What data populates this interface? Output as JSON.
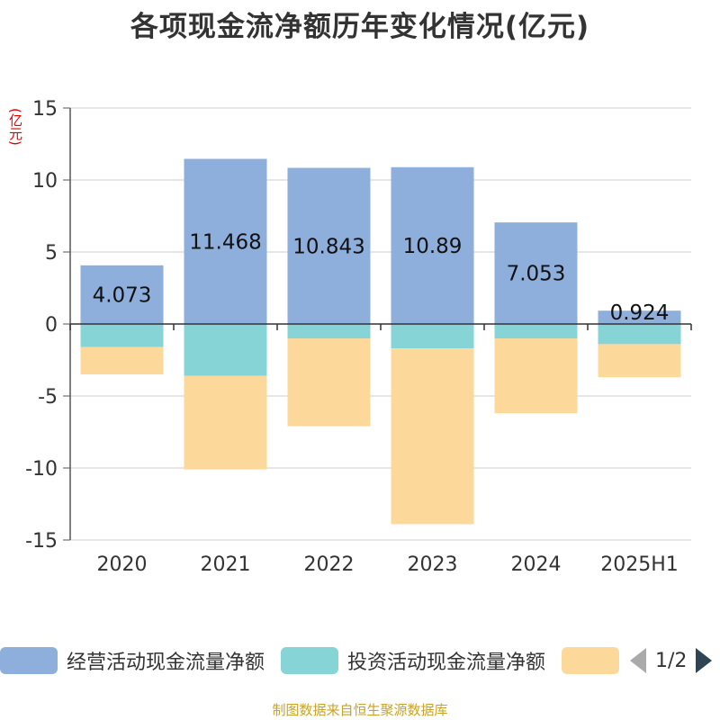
{
  "title": "各项现金流净额历年变化情况(亿元)",
  "unit_label": "(亿元)",
  "chart_data": {
    "type": "bar",
    "stacked": true,
    "categories": [
      "2020",
      "2021",
      "2022",
      "2023",
      "2024",
      "2025H1"
    ],
    "ylim": [
      -15,
      15
    ],
    "yticks": [
      15,
      10,
      5,
      0,
      -5,
      -10,
      -15
    ],
    "grid": true,
    "legend_position": "bottom",
    "series": [
      {
        "name": "经营活动现金流量净额",
        "color": "#8eaedb",
        "values": [
          4.073,
          11.468,
          10.843,
          10.89,
          7.053,
          0.924
        ],
        "labels": [
          "4.073",
          "11.468",
          "10.843",
          "10.89",
          "7.053",
          "0.924"
        ]
      },
      {
        "name": "投资活动现金流量净额",
        "color": "#86d4d6",
        "values": [
          -1.6,
          -3.6,
          -1.0,
          -1.7,
          -1.0,
          -1.4
        ]
      },
      {
        "name": "",
        "color": "#fdd89b",
        "values": [
          -1.9,
          -6.5,
          -6.1,
          -12.2,
          -5.2,
          -2.3
        ]
      }
    ]
  },
  "legend": {
    "items": [
      "经营活动现金流量净额",
      "投资活动现金流量净额"
    ],
    "colors": [
      "#8eaedb",
      "#86d4d6",
      "#fdd89b"
    ],
    "pager": "1/2"
  },
  "footer": "制图数据来自恒生聚源数据库"
}
